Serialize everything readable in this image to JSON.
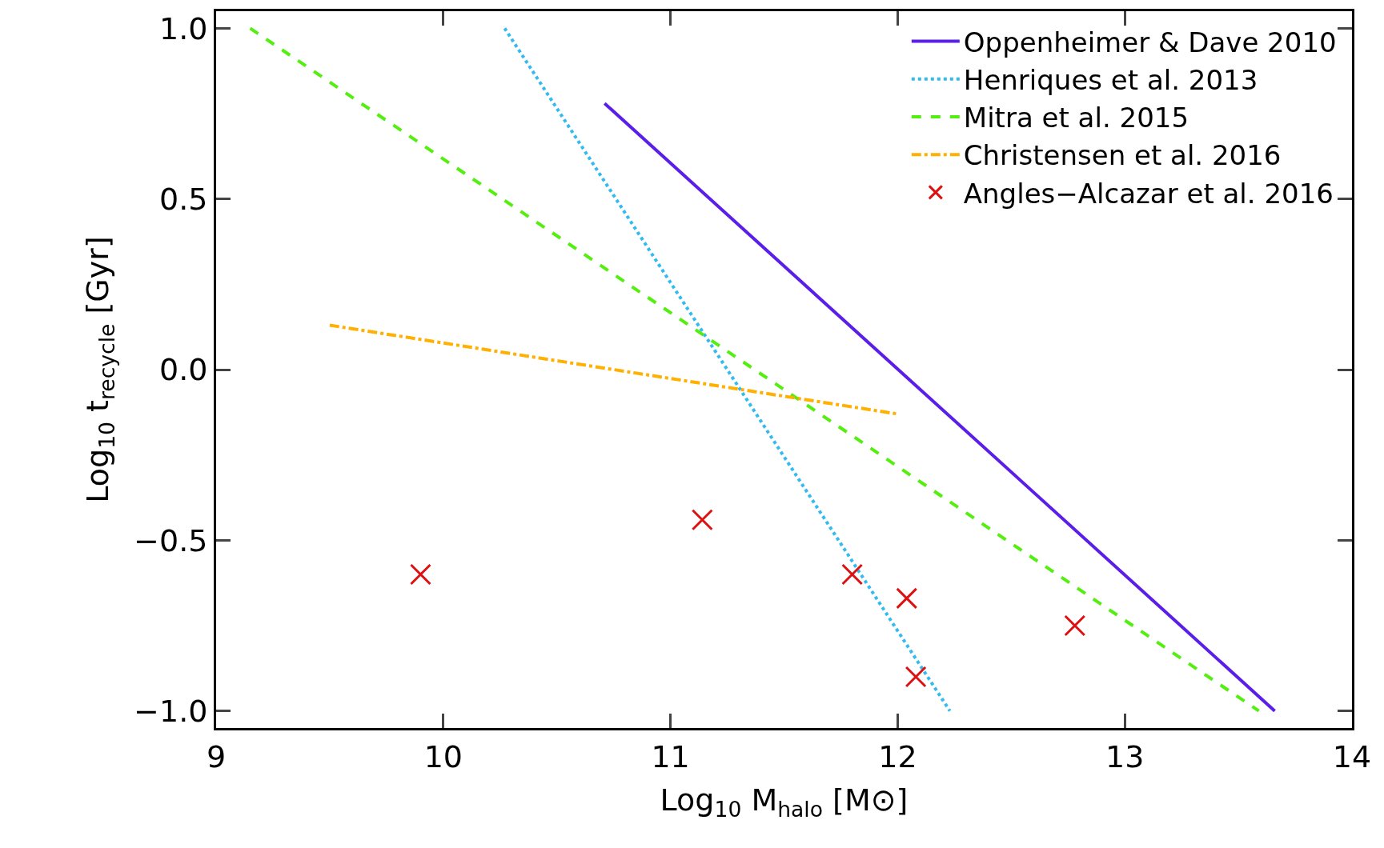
{
  "chart_data": {
    "type": "line",
    "xlabel": "Log$_{10}$ M$_{halo}$ [M⊙]",
    "ylabel": "Log$_{10}$ t$_{recycle}$ [Gyr]",
    "xlim": [
      9,
      14
    ],
    "ylim": [
      -1.05,
      1.05
    ],
    "xticks": [
      9,
      10,
      11,
      12,
      13,
      14
    ],
    "yticks": [
      {
        "value": -1,
        "label": "−1.0"
      },
      {
        "value": -0.5,
        "label": "−0.5"
      },
      {
        "value": 0,
        "label": "0.0"
      },
      {
        "value": 0.5,
        "label": "0.5"
      },
      {
        "value": 1,
        "label": "1.0"
      }
    ],
    "grid": false,
    "legend": "top right",
    "series": [
      {
        "name": "Oppenheimer & Dave 2010",
        "color": "#5b1ee8",
        "line_style": "solid",
        "x": [
          10.71,
          13.66
        ],
        "values": [
          0.78,
          -1.0
        ]
      },
      {
        "name": "Henriques et al. 2013",
        "color": "#33bbf0",
        "line_style": "dotted",
        "x": [
          10.27,
          12.23
        ],
        "values": [
          1.0,
          -1.0
        ]
      },
      {
        "name": "Mitra et al. 2015",
        "color": "#55ee11",
        "line_style": "dashed",
        "x": [
          9.15,
          13.59
        ],
        "values": [
          1.0,
          -1.0
        ]
      },
      {
        "name": "Christensen et al. 2016",
        "color": "#ffb000",
        "line_style": "dashdot",
        "x": [
          9.5,
          12.0
        ],
        "values": [
          0.13,
          -0.13
        ]
      },
      {
        "name": "Angles−Alcazar et al. 2016",
        "type": "scatter",
        "marker": "cross",
        "color": "#dd1111",
        "x": [
          9.9,
          11.14,
          11.8,
          12.04,
          12.08,
          12.78
        ],
        "values": [
          -0.6,
          -0.44,
          -0.6,
          -0.67,
          -0.9,
          -0.75
        ]
      }
    ]
  }
}
